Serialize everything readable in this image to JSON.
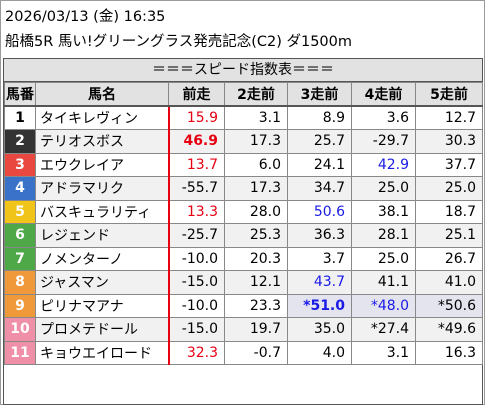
{
  "header": {
    "datetime": "2026/03/13 (金) 16:35",
    "race": "船橋5R 馬い!グリーングラス発売記念(C2) ダ1500m"
  },
  "banner": "＝＝＝スピード指数表＝＝＝",
  "columns": [
    "馬番",
    "馬名",
    "前走",
    "2走前",
    "3走前",
    "4走前",
    "5走前"
  ],
  "gate_colors": {
    "1": "#ffffff",
    "2": "#333333",
    "3": "#e8483f",
    "4": "#3a72c9",
    "5": "#f0c419",
    "6": "#4fa848",
    "7": "#4fa848",
    "8": "#f0993a",
    "9": "#f0993a",
    "10": "#ef8fa8",
    "11": "#ef8fa8"
  },
  "rows": [
    {
      "num": "1",
      "name": "タイキレヴィン",
      "cells": [
        {
          "v": "15.9",
          "c": "red"
        },
        {
          "v": "3.1"
        },
        {
          "v": "8.9"
        },
        {
          "v": "3.6"
        },
        {
          "v": "12.7"
        }
      ]
    },
    {
      "num": "2",
      "name": "テリオスボス",
      "cells": [
        {
          "v": "46.9",
          "c": "red",
          "b": true
        },
        {
          "v": "17.3"
        },
        {
          "v": "25.7"
        },
        {
          "v": "-29.7"
        },
        {
          "v": "30.3"
        }
      ]
    },
    {
      "num": "3",
      "name": "エウクレイア",
      "cells": [
        {
          "v": "13.7",
          "c": "red"
        },
        {
          "v": "6.0"
        },
        {
          "v": "24.1"
        },
        {
          "v": "42.9",
          "c": "blue"
        },
        {
          "v": "37.7"
        }
      ]
    },
    {
      "num": "4",
      "name": "アドラマリク",
      "cells": [
        {
          "v": "-55.7"
        },
        {
          "v": "17.3"
        },
        {
          "v": "34.7"
        },
        {
          "v": "25.0"
        },
        {
          "v": "25.0"
        }
      ]
    },
    {
      "num": "5",
      "name": "バスキュラリティ",
      "cells": [
        {
          "v": "13.3",
          "c": "red"
        },
        {
          "v": "28.0"
        },
        {
          "v": "50.6",
          "c": "blue"
        },
        {
          "v": "38.1"
        },
        {
          "v": "18.7"
        }
      ]
    },
    {
      "num": "6",
      "name": "レジェンド",
      "cells": [
        {
          "v": "-25.7"
        },
        {
          "v": "25.3"
        },
        {
          "v": "36.3"
        },
        {
          "v": "28.1"
        },
        {
          "v": "25.1"
        }
      ]
    },
    {
      "num": "7",
      "name": "ノメンターノ",
      "cells": [
        {
          "v": "-10.0"
        },
        {
          "v": "20.3"
        },
        {
          "v": "3.7"
        },
        {
          "v": "25.0"
        },
        {
          "v": "26.7"
        }
      ]
    },
    {
      "num": "8",
      "name": "ジャスマン",
      "cells": [
        {
          "v": "-15.0"
        },
        {
          "v": "12.1"
        },
        {
          "v": "43.7",
          "c": "blue"
        },
        {
          "v": "41.1"
        },
        {
          "v": "41.0"
        }
      ]
    },
    {
      "num": "9",
      "name": "ピリナマアナ",
      "cells": [
        {
          "v": "-10.0"
        },
        {
          "v": "23.3"
        },
        {
          "v": "*51.0",
          "c": "blue",
          "b": true,
          "hi": true
        },
        {
          "v": "*48.0",
          "c": "blue",
          "hi": true
        },
        {
          "v": "*50.6",
          "hi": true
        }
      ]
    },
    {
      "num": "10",
      "name": "プロメテドール",
      "cells": [
        {
          "v": "-15.0"
        },
        {
          "v": "19.7"
        },
        {
          "v": "35.0"
        },
        {
          "v": "*27.4"
        },
        {
          "v": "*49.6"
        }
      ]
    },
    {
      "num": "11",
      "name": "キョウエイロード",
      "cells": [
        {
          "v": "32.3",
          "c": "red"
        },
        {
          "v": "-0.7"
        },
        {
          "v": "4.0"
        },
        {
          "v": "3.1"
        },
        {
          "v": "16.3"
        }
      ]
    }
  ]
}
